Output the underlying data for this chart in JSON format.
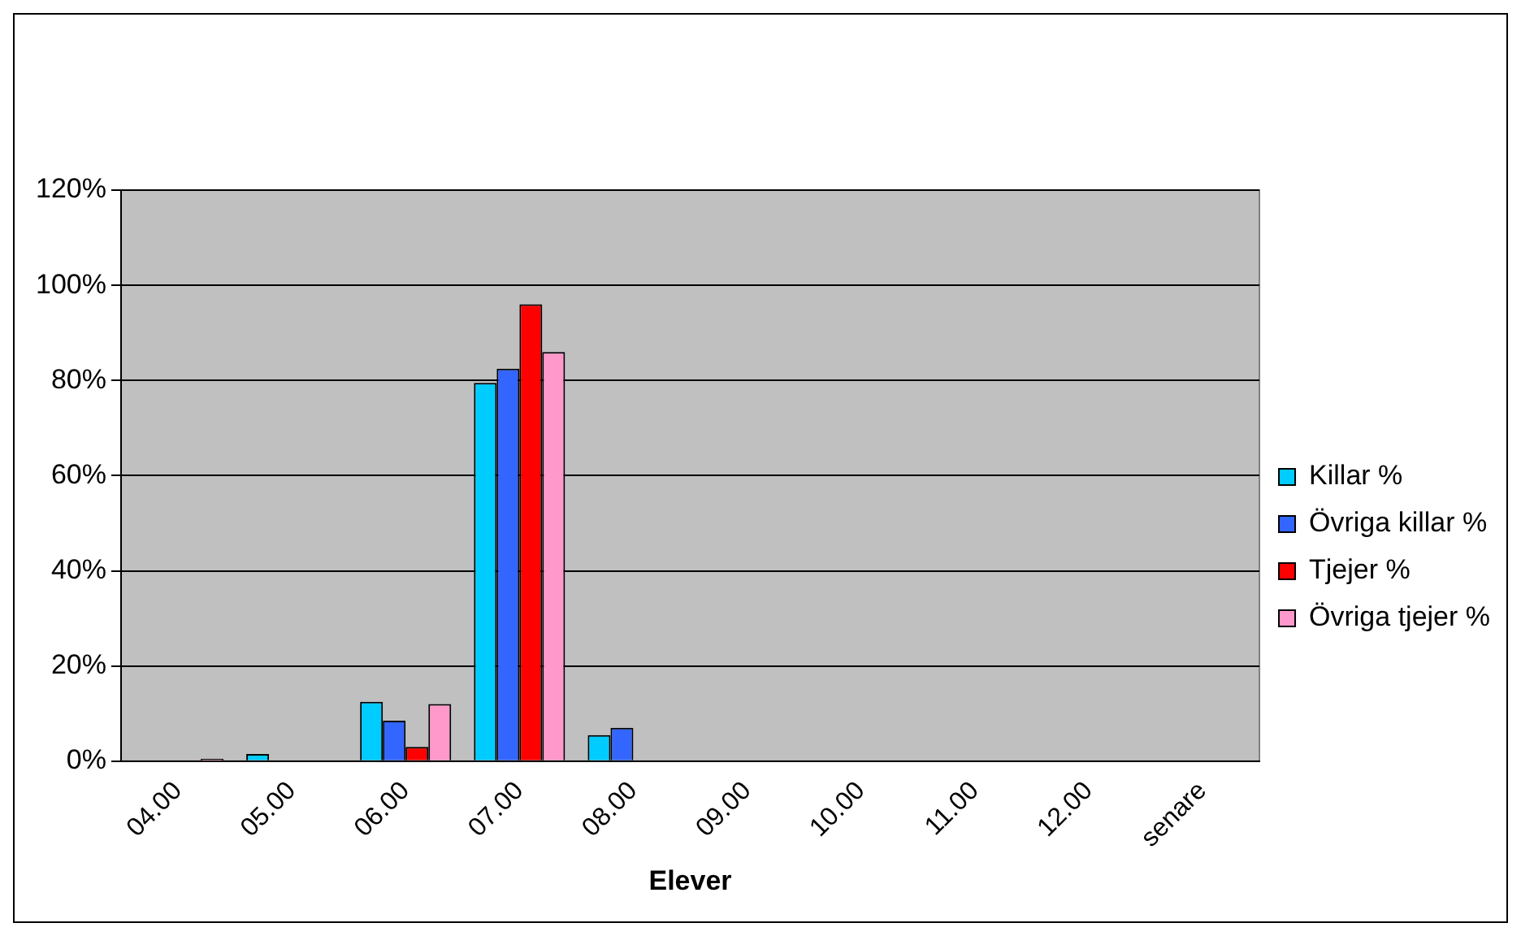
{
  "chart_data": {
    "type": "bar",
    "xlabel": "Elever",
    "categories": [
      "04.00",
      "05.00",
      "06.00",
      "07.00",
      "08.00",
      "09.00",
      "10.00",
      "11.00",
      "12.00",
      "senare"
    ],
    "series": [
      {
        "name": "Killar %",
        "color": "#00ccff",
        "values": [
          0,
          1.5,
          12.5,
          79.5,
          5.5,
          0,
          0,
          0,
          0,
          0
        ]
      },
      {
        "name": "Övriga killar %",
        "color": "#3366ff",
        "values": [
          0,
          0,
          8.5,
          82.5,
          7,
          0,
          0,
          0,
          0,
          0
        ]
      },
      {
        "name": "Tjejer %",
        "color": "#ff0000",
        "values": [
          0,
          0,
          3,
          96,
          0,
          0,
          0,
          0,
          0,
          0
        ]
      },
      {
        "name": "Övriga tjejer %",
        "color": "#ff99cc",
        "values": [
          0.5,
          0,
          12,
          86,
          0,
          0,
          0,
          0,
          0,
          0
        ]
      }
    ],
    "ylim": [
      0,
      120
    ],
    "yticks": [
      {
        "value": 0,
        "label": "0%"
      },
      {
        "value": 20,
        "label": "20%"
      },
      {
        "value": 40,
        "label": "40%"
      },
      {
        "value": 60,
        "label": "60%"
      },
      {
        "value": 80,
        "label": "80%"
      },
      {
        "value": 100,
        "label": "100%"
      },
      {
        "value": 120,
        "label": "120%"
      }
    ],
    "grid": "y",
    "legend": "right"
  }
}
